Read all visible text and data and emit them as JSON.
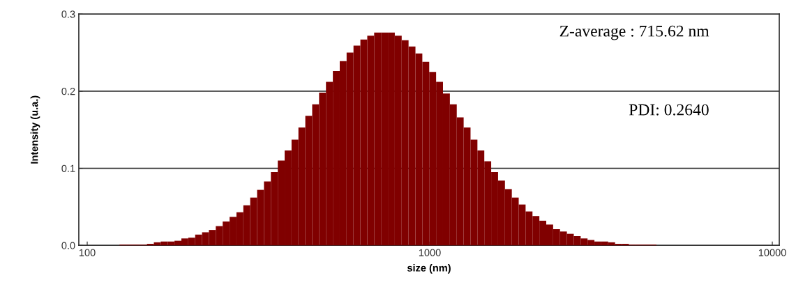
{
  "chart_data": {
    "type": "histogram",
    "xlabel": "size (nm)",
    "ylabel": "Intensity (u.a.)",
    "annotations": [
      "Z-average : 715.62 nm",
      "PDI: 0.2640"
    ],
    "bins": [
      124.2,
      130.1,
      136.2,
      142.7,
      149.4,
      156.5,
      163.9,
      171.7,
      179.8,
      188.3,
      197.2,
      206.6,
      216.4,
      226.6,
      237.3,
      248.6,
      260.4,
      272.7,
      285.6,
      299.1,
      313.3,
      328.1,
      343.7,
      360.0,
      377.0,
      394.9,
      413.6,
      433.2,
      453.7,
      475.2,
      497.7,
      521.3,
      546.0,
      571.8,
      598.9,
      627.3,
      657.0,
      688.1,
      720.7,
      754.8,
      790.6,
      828.0,
      867.2,
      908.3,
      951.3,
      996.4,
      1043.6,
      1093.0,
      1144.8,
      1199.0,
      1255.8,
      1315.3,
      1377.6,
      1442.8,
      1511.1,
      1582.7,
      1657.6,
      1736.1,
      1818.3,
      1904.4,
      1994.6,
      2089.1,
      2188.0,
      2291.6,
      2400.1,
      2513.8,
      2632.8,
      2757.5,
      2888.1,
      3024.9,
      3168.1,
      3318.1,
      3475.3,
      3639.9,
      3812.2,
      3992.8,
      4181.9,
      4379.9,
      4587.3
    ],
    "values": [
      0.001,
      0.001,
      0.001,
      0.001,
      0.002,
      0.004,
      0.005,
      0.005,
      0.006,
      0.009,
      0.01,
      0.014,
      0.017,
      0.02,
      0.025,
      0.031,
      0.037,
      0.043,
      0.052,
      0.062,
      0.072,
      0.083,
      0.095,
      0.11,
      0.123,
      0.137,
      0.153,
      0.168,
      0.183,
      0.198,
      0.212,
      0.226,
      0.239,
      0.25,
      0.259,
      0.267,
      0.272,
      0.276,
      0.276,
      0.276,
      0.272,
      0.266,
      0.258,
      0.249,
      0.238,
      0.225,
      0.212,
      0.197,
      0.183,
      0.166,
      0.153,
      0.137,
      0.123,
      0.109,
      0.095,
      0.084,
      0.073,
      0.062,
      0.053,
      0.044,
      0.038,
      0.032,
      0.027,
      0.021,
      0.018,
      0.015,
      0.012,
      0.009,
      0.007,
      0.005,
      0.005,
      0.004,
      0.002,
      0.002,
      0.001,
      0.001,
      0.001,
      0.001
    ],
    "color": "#800000",
    "log": "x",
    "xlim": [
      94.5,
      10480
    ],
    "xticks": [
      100,
      1000,
      10000
    ],
    "ylim": [
      0,
      0.3
    ],
    "yticks": [
      {
        "value": 0,
        "label": "0.0"
      },
      0.1,
      0.2,
      0.3
    ],
    "grid": "y"
  }
}
